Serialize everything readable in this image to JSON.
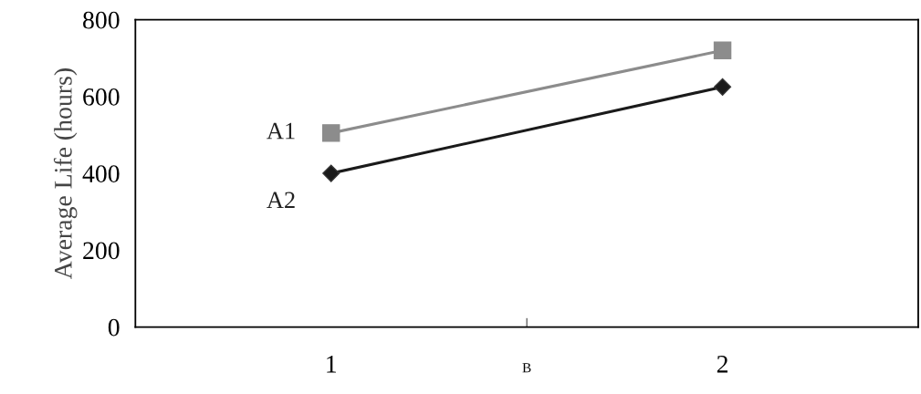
{
  "chart_data": {
    "type": "line",
    "ylabel": "Average Life (hours)",
    "xlabel": "B",
    "categories": [
      "1",
      "2"
    ],
    "series": [
      {
        "name": "A1",
        "color": "#8c8c8c",
        "values": [
          505,
          720
        ],
        "marker": "square"
      },
      {
        "name": "A2",
        "color": "#1a1a1a",
        "values": [
          400,
          625
        ],
        "marker": "diamond"
      }
    ],
    "ylim": [
      0,
      800
    ],
    "yticks": [
      0,
      200,
      400,
      600,
      800
    ],
    "grid": false,
    "legend": false,
    "line_style": "solid"
  }
}
